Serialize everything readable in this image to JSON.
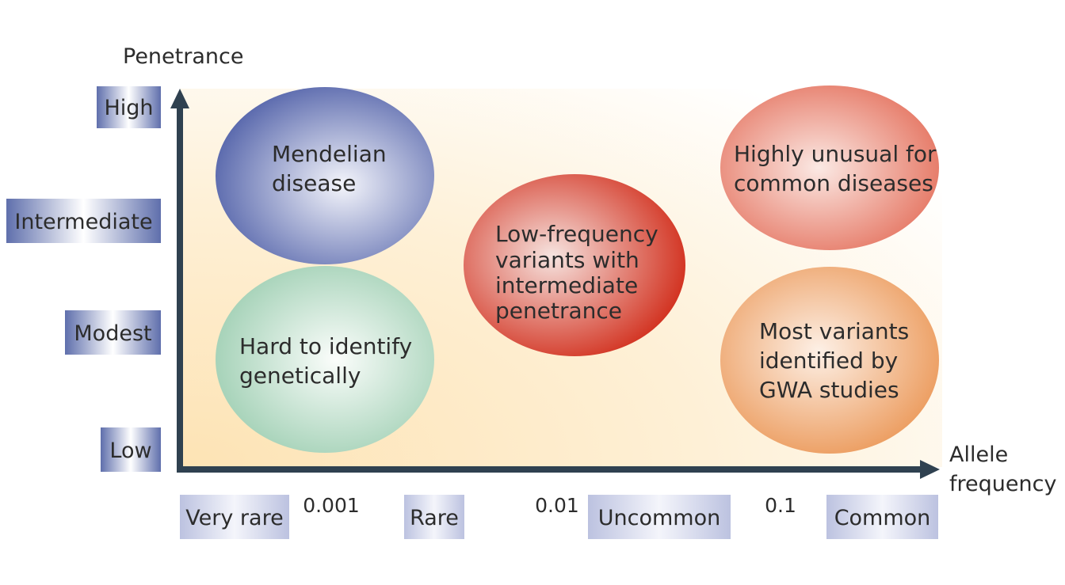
{
  "axes": {
    "y_title": "Penetrance",
    "x_title_line1": "Allele",
    "x_title_line2": "frequency"
  },
  "y_levels": [
    "High",
    "Intermediate",
    "Modest",
    "Low"
  ],
  "x_categories": [
    "Very rare",
    "Rare",
    "Uncommon",
    "Common"
  ],
  "x_thresholds": [
    "0.001",
    "0.01",
    "0.1"
  ],
  "regions": {
    "mendelian": {
      "line1": "Mendelian",
      "line2": "disease"
    },
    "hard": {
      "line1": "Hard to identify",
      "line2": "genetically"
    },
    "lowfreq": {
      "line1": "Low-frequency",
      "line2": "variants with",
      "line3": "intermediate",
      "line4": "penetrance"
    },
    "unusual": {
      "line1": "Highly unusual for",
      "line2": "common diseases"
    },
    "gwa": {
      "line1": "Most variants",
      "line2": "identified by",
      "line3": "GWA studies"
    }
  },
  "colors": {
    "axis": "#2f4150",
    "label_box": "#6c7bb0",
    "category_box": "#c5cae4",
    "mendelian": "#5a6ab0",
    "hard": "#a8d2b8",
    "lowfreq": "#d63a2a",
    "unusual": "#e87a6a",
    "gwa": "#eea26a"
  }
}
